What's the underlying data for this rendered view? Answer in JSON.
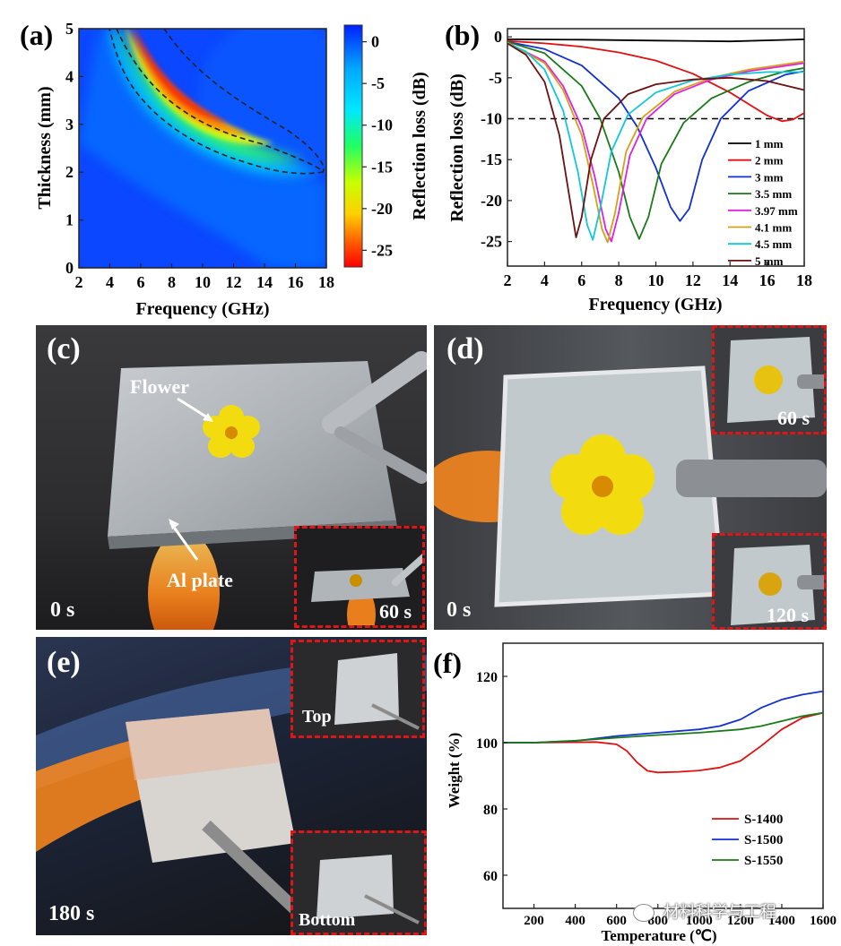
{
  "panels": {
    "a": "(a)",
    "b": "(b)",
    "c": "(c)",
    "d": "(d)",
    "e": "(e)",
    "f": "(f)"
  },
  "chart_data": [
    {
      "id": "a",
      "type": "heatmap",
      "title": "",
      "xlabel": "Frequency (GHz)",
      "ylabel": "Thickness (mm)",
      "colorbar_label": "Reflection loss (dB)",
      "xlim": [
        2,
        18
      ],
      "ylim": [
        0,
        5
      ],
      "xticks": [
        2,
        4,
        6,
        8,
        10,
        12,
        14,
        16,
        18
      ],
      "yticks": [
        0,
        1,
        2,
        3,
        4,
        5
      ],
      "colorbar_ticks": [
        0,
        -5,
        -10,
        -15,
        -20,
        -25
      ],
      "colorbar_range": [
        -27,
        2
      ],
      "contour_level": -10,
      "min_ridge": [
        [
          5.7,
          5.0
        ],
        [
          6.5,
          4.5
        ],
        [
          7.5,
          3.97
        ],
        [
          9.1,
          3.5
        ],
        [
          11.3,
          3.0
        ],
        [
          14.0,
          2.6
        ]
      ]
    },
    {
      "id": "b",
      "type": "line",
      "xlabel": "Frequency (GHz)",
      "ylabel": "Reflection loss (dB)",
      "xlim": [
        2,
        18
      ],
      "ylim": [
        -28,
        1
      ],
      "xticks": [
        2,
        4,
        6,
        8,
        10,
        12,
        14,
        16,
        18
      ],
      "yticks": [
        0,
        -5,
        -10,
        -15,
        -20,
        -25
      ],
      "reference_line": -10,
      "legend_position": "right",
      "series": [
        {
          "name": "1 mm",
          "color": "#000000",
          "x": [
            2,
            6,
            10,
            14,
            18
          ],
          "y": [
            -0.3,
            -0.35,
            -0.45,
            -0.55,
            -0.3
          ]
        },
        {
          "name": "2 mm",
          "color": "#e01010",
          "x": [
            2,
            4,
            6,
            8,
            10,
            12,
            14,
            15,
            16,
            16.8,
            17.4,
            18
          ],
          "y": [
            -0.5,
            -0.8,
            -1.2,
            -1.9,
            -2.9,
            -4.5,
            -6.8,
            -8.2,
            -9.6,
            -10.3,
            -10.1,
            -9.3
          ]
        },
        {
          "name": "3 mm",
          "color": "#1030d0",
          "x": [
            2,
            4,
            6,
            8,
            9,
            10,
            10.8,
            11.3,
            11.8,
            12.5,
            13.5,
            15,
            17,
            18
          ],
          "y": [
            -0.6,
            -1.5,
            -3.5,
            -7.5,
            -11,
            -16,
            -20.8,
            -22.5,
            -21,
            -15,
            -10,
            -6.6,
            -4.6,
            -4.2
          ]
        },
        {
          "name": "3.5 mm",
          "color": "#1a7a1a",
          "x": [
            2,
            4,
            6,
            7,
            8,
            8.6,
            9.1,
            9.6,
            10.3,
            11.5,
            13,
            15,
            17,
            18
          ],
          "y": [
            -0.6,
            -2,
            -6,
            -10,
            -16.5,
            -22,
            -24.7,
            -22,
            -15.5,
            -10.5,
            -7.5,
            -5.5,
            -4.2,
            -3.8
          ]
        },
        {
          "name": "3.97 mm",
          "color": "#e020e0",
          "x": [
            2,
            4,
            5,
            6,
            6.7,
            7.3,
            7.6,
            8.0,
            8.6,
            9.5,
            11,
            13,
            15,
            18
          ],
          "y": [
            -0.7,
            -3,
            -6,
            -11,
            -17,
            -23.5,
            -25.0,
            -21.5,
            -14.5,
            -10,
            -7,
            -5.2,
            -4.2,
            -3.2
          ]
        },
        {
          "name": "4.1 mm",
          "color": "#d4a017",
          "x": [
            2,
            4,
            5,
            6,
            6.6,
            7.1,
            7.4,
            7.8,
            8.4,
            9.3,
            11,
            13,
            15,
            18
          ],
          "y": [
            -0.7,
            -3.2,
            -6.5,
            -12,
            -18,
            -23.5,
            -25.1,
            -21.5,
            -14,
            -9.8,
            -6.7,
            -5.0,
            -4.0,
            -3.0
          ]
        },
        {
          "name": "4.5 mm",
          "color": "#10c8d8",
          "x": [
            2,
            3,
            4,
            5,
            5.8,
            6.3,
            6.6,
            7.0,
            7.6,
            8.5,
            10,
            12,
            14,
            16,
            18
          ],
          "y": [
            -0.8,
            -1.8,
            -4,
            -9,
            -16.5,
            -23,
            -24.8,
            -21,
            -14,
            -9.5,
            -6.8,
            -5.3,
            -4.6,
            -4.3,
            -4.3
          ]
        },
        {
          "name": "5 mm",
          "color": "#6e1010",
          "x": [
            2,
            3,
            4,
            4.8,
            5.3,
            5.7,
            6.0,
            6.5,
            7.2,
            8.5,
            10,
            12,
            14,
            16,
            18
          ],
          "y": [
            -0.8,
            -2.2,
            -5.5,
            -12,
            -19,
            -24.5,
            -22,
            -15,
            -10,
            -7,
            -5.8,
            -5.2,
            -5.0,
            -5.4,
            -6.5
          ]
        }
      ]
    },
    {
      "id": "f",
      "type": "line",
      "xlabel": "Temperature (℃)",
      "ylabel": "Weight (%)",
      "xlim": [
        50,
        1600
      ],
      "ylim": [
        50,
        130
      ],
      "xticks": [
        200,
        400,
        600,
        800,
        1000,
        1200,
        1400,
        1600
      ],
      "xticklabels": [
        "200",
        "400",
        "600",
        "800",
        "1000",
        "1200",
        "1400",
        "1600"
      ],
      "yticks": [
        60,
        80,
        100,
        120
      ],
      "legend_position": "bottom-right",
      "series": [
        {
          "name": "S-1400",
          "color": "#e01010",
          "x": [
            50,
            200,
            400,
            500,
            600,
            650,
            700,
            750,
            800,
            900,
            1000,
            1100,
            1200,
            1300,
            1400,
            1500,
            1600
          ],
          "y": [
            100,
            100,
            100.1,
            100.2,
            99.5,
            97.5,
            94,
            91.5,
            91,
            91.2,
            91.6,
            92.5,
            94.5,
            99,
            104,
            107.5,
            109
          ]
        },
        {
          "name": "S-1500",
          "color": "#1030d0",
          "x": [
            50,
            200,
            400,
            600,
            800,
            1000,
            1100,
            1200,
            1300,
            1400,
            1500,
            1600
          ],
          "y": [
            100,
            100,
            100.5,
            102,
            103,
            104,
            105,
            107,
            110.5,
            113,
            114.5,
            115.5
          ]
        },
        {
          "name": "S-1550",
          "color": "#1a7a1a",
          "x": [
            50,
            200,
            400,
            600,
            800,
            1000,
            1200,
            1300,
            1400,
            1500,
            1600
          ],
          "y": [
            100,
            100,
            100.6,
            101.5,
            102.3,
            103,
            104,
            105,
            106.5,
            108,
            109
          ]
        }
      ]
    }
  ],
  "photos": {
    "c": {
      "flower_label": "Flower",
      "plate_label": "Al plate",
      "time_main": "0 s",
      "time_inset": "60 s"
    },
    "d": {
      "time_main": "0 s",
      "time_inset_top": "60 s",
      "time_inset_bottom": "120 s"
    },
    "e": {
      "time_main": "180 s",
      "inset_top": "Top",
      "inset_bottom": "Bottom"
    }
  },
  "watermark": "材料科学与工程",
  "colors": {
    "inset_border": "#e01616",
    "flower": "#f2dc10",
    "flame": "#ff8a1c"
  }
}
